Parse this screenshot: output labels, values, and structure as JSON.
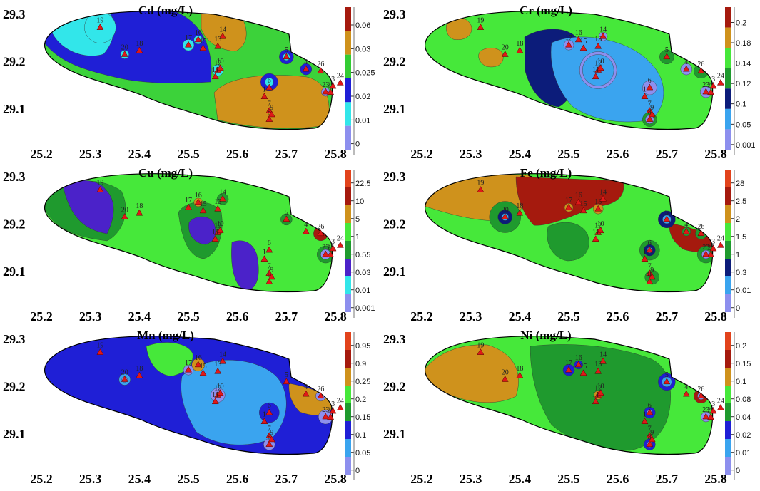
{
  "x_ticks": [
    "25.2",
    "25.3",
    "25.4",
    "25.5",
    "25.6",
    "25.7",
    "25.8"
  ],
  "y_ticks": [
    "29.3",
    "29.2",
    "29.1"
  ],
  "points": [
    {
      "id": "19",
      "x": 25.32,
      "y": 29.272
    },
    {
      "id": "20",
      "x": 25.37,
      "y": 29.215
    },
    {
      "id": "18",
      "x": 25.4,
      "y": 29.223
    },
    {
      "id": "17",
      "x": 25.5,
      "y": 29.235
    },
    {
      "id": "16",
      "x": 25.52,
      "y": 29.246
    },
    {
      "id": "15",
      "x": 25.53,
      "y": 29.228
    },
    {
      "id": "13",
      "x": 25.56,
      "y": 29.232
    },
    {
      "id": "14",
      "x": 25.57,
      "y": 29.253
    },
    {
      "id": "12",
      "x": 25.56,
      "y": 29.182
    },
    {
      "id": "10",
      "x": 25.565,
      "y": 29.186
    },
    {
      "id": "11",
      "x": 25.555,
      "y": 29.168
    },
    {
      "id": "5",
      "x": 25.7,
      "y": 29.21
    },
    {
      "id": "4",
      "x": 25.74,
      "y": 29.184
    },
    {
      "id": "6",
      "x": 25.665,
      "y": 29.145
    },
    {
      "id": "1",
      "x": 25.655,
      "y": 29.126
    },
    {
      "id": "7",
      "x": 25.665,
      "y": 29.096
    },
    {
      "id": "8",
      "x": 25.665,
      "y": 29.078
    },
    {
      "id": "9",
      "x": 25.67,
      "y": 29.088
    },
    {
      "id": "26",
      "x": 25.77,
      "y": 29.18
    },
    {
      "id": "23",
      "x": 25.78,
      "y": 29.136
    },
    {
      "id": "25",
      "x": 25.79,
      "y": 29.135
    },
    {
      "id": "3",
      "x": 25.795,
      "y": 29.148
    },
    {
      "id": "24",
      "x": 25.81,
      "y": 29.155
    }
  ],
  "panels": [
    {
      "title": "Cd (mg/L)",
      "base_color": "#3cd23a",
      "legend": [
        {
          "label": "0.06",
          "color": "#a51a0e"
        },
        {
          "label": "0.03",
          "color": "#cf921c"
        },
        {
          "label": "0.025",
          "color": "#33cc33"
        },
        {
          "label": "0.02",
          "color": "#1f1fd6"
        },
        {
          "label": "0.01",
          "color": "#32e6ea"
        },
        {
          "label": "0",
          "color": "#8d8fee"
        }
      ],
      "zones": [
        {
          "color": "#1f1fd6",
          "shape": "cd-blue-west"
        },
        {
          "color": "#32e6ea",
          "shape": "cd-cyan-west"
        },
        {
          "color": "#cf921c",
          "shape": "cd-orange-north"
        },
        {
          "color": "#cf921c",
          "shape": "cd-orange-south"
        }
      ]
    },
    {
      "title": "Cr (mg/L)",
      "base_color": "#46e83a",
      "legend": [
        {
          "label": "0.2",
          "color": "#a51a0e"
        },
        {
          "label": "0.18",
          "color": "#cf921c"
        },
        {
          "label": "0.14",
          "color": "#46e83a"
        },
        {
          "label": "0.12",
          "color": "#1f9a2e"
        },
        {
          "label": "0.1",
          "color": "#0c1c7a"
        },
        {
          "label": "0.05",
          "color": "#3aa4ef"
        },
        {
          "label": "0.001",
          "color": "#8d8fee"
        }
      ],
      "zones": [
        {
          "color": "#0c1c7a",
          "shape": "cr-navy"
        },
        {
          "color": "#3aa4ef",
          "shape": "cr-lightblue"
        },
        {
          "color": "#cf921c",
          "shape": "cr-orange-19"
        },
        {
          "color": "#cf921c",
          "shape": "cr-orange-20"
        }
      ]
    },
    {
      "title": "Cu (mg/L)",
      "base_color": "#46e83a",
      "legend": [
        {
          "label": "22.5",
          "color": "#e2431c"
        },
        {
          "label": "10",
          "color": "#a51a0e"
        },
        {
          "label": "5",
          "color": "#cf921c"
        },
        {
          "label": "1",
          "color": "#46e83a"
        },
        {
          "label": "0.55",
          "color": "#1f9a2e"
        },
        {
          "label": "0.03",
          "color": "#4b22c9"
        },
        {
          "label": "0.01",
          "color": "#32e6ea"
        },
        {
          "label": "0.001",
          "color": "#8d8fee"
        }
      ],
      "zones": [
        {
          "color": "#1f9a2e",
          "shape": "cu-green-west"
        },
        {
          "color": "#4b22c9",
          "shape": "cu-purple-west"
        },
        {
          "color": "#1f9a2e",
          "shape": "cu-green-center"
        },
        {
          "color": "#4b22c9",
          "shape": "cu-purple-center"
        },
        {
          "color": "#4b22c9",
          "shape": "cu-purple-south"
        }
      ]
    },
    {
      "title": "Fe (mg/L)",
      "base_color": "#46e83a",
      "legend": [
        {
          "label": "28",
          "color": "#e2431c"
        },
        {
          "label": "2.5",
          "color": "#a51a0e"
        },
        {
          "label": "2",
          "color": "#cf921c"
        },
        {
          "label": "1.5",
          "color": "#46e83a"
        },
        {
          "label": "1",
          "color": "#1f9a2e"
        },
        {
          "label": "0.3",
          "color": "#0c1c7a"
        },
        {
          "label": "0.01",
          "color": "#3aa4ef"
        },
        {
          "label": "0",
          "color": "#8d8fee"
        }
      ],
      "zones": [
        {
          "color": "#cf921c",
          "shape": "fe-orange-west"
        },
        {
          "color": "#a51a0e",
          "shape": "fe-red-north"
        },
        {
          "color": "#a51a0e",
          "shape": "fe-red-east"
        },
        {
          "color": "#1f9a2e",
          "shape": "fe-green-center"
        }
      ]
    },
    {
      "title": "Mn (mg/L)",
      "base_color": "#1f1fd6",
      "legend": [
        {
          "label": "0.95",
          "color": "#e2431c"
        },
        {
          "label": "0.9",
          "color": "#a51a0e"
        },
        {
          "label": "0.25",
          "color": "#cf921c"
        },
        {
          "label": "0.2",
          "color": "#46e83a"
        },
        {
          "label": "0.15",
          "color": "#1f9a2e"
        },
        {
          "label": "0.1",
          "color": "#1f1fd6"
        },
        {
          "label": "0.05",
          "color": "#3aa4ef"
        },
        {
          "label": "0",
          "color": "#8d8fee"
        }
      ],
      "zones": [
        {
          "color": "#46e83a",
          "shape": "mn-green-north"
        },
        {
          "color": "#3aa4ef",
          "shape": "mn-lightblue-center"
        },
        {
          "color": "#cf921c",
          "shape": "mn-orange-east"
        }
      ]
    },
    {
      "title": "Ni (mg/L)",
      "base_color": "#46e83a",
      "legend": [
        {
          "label": "0.2",
          "color": "#e2431c"
        },
        {
          "label": "0.15",
          "color": "#a51a0e"
        },
        {
          "label": "0.1",
          "color": "#cf921c"
        },
        {
          "label": "0.08",
          "color": "#46e83a"
        },
        {
          "label": "0.04",
          "color": "#1f9a2e"
        },
        {
          "label": "0.02",
          "color": "#1f1fd6"
        },
        {
          "label": "0.01",
          "color": "#3aa4ef"
        },
        {
          "label": "0",
          "color": "#8d8fee"
        }
      ],
      "zones": [
        {
          "color": "#cf921c",
          "shape": "ni-orange-west"
        },
        {
          "color": "#1f9a2e",
          "shape": "ni-green-east"
        }
      ]
    }
  ]
}
